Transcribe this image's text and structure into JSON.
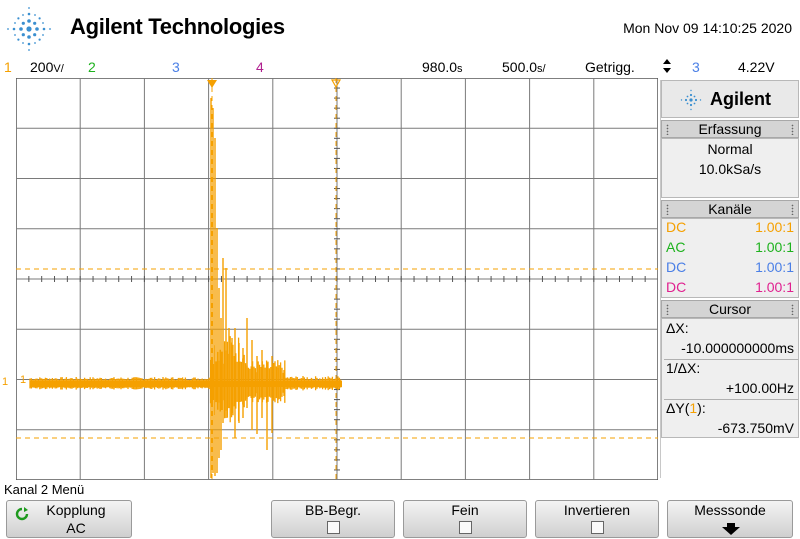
{
  "header": {
    "brand": "Agilent Technologies",
    "datetime": "Mon Nov 09 14:10:25 2020"
  },
  "status": {
    "ch1_num": "1",
    "ch1_scale": "200",
    "ch1_unit": "V/",
    "ch2_num": "2",
    "ch3_num": "3",
    "ch4_num": "4",
    "time_delay": "980.0",
    "time_delay_unit": "s",
    "time_scale": "500.0",
    "time_scale_unit": "s/",
    "trigger_mode": "Getrigg.",
    "trigger_source": "3",
    "trigger_level": "4.22V"
  },
  "scope": {
    "ch1_marker": "1",
    "ground_marker": "1"
  },
  "panel": {
    "logo_text": "Agilent",
    "acquisition": {
      "title": "Erfassung",
      "mode": "Normal",
      "rate": "10.0kSa/s"
    },
    "channels": {
      "title": "Kanäle",
      "rows": [
        {
          "coupling": "DC",
          "probe": "1.00:1",
          "color": "#f5a000"
        },
        {
          "coupling": "AC",
          "probe": "1.00:1",
          "color": "#1db21d"
        },
        {
          "coupling": "DC",
          "probe": "1.00:1",
          "color": "#4a7fe6"
        },
        {
          "coupling": "DC",
          "probe": "1.00:1",
          "color": "#e0208f"
        }
      ]
    },
    "cursor": {
      "title": "Cursor",
      "dx_label": "ΔX:",
      "dx_value": "-10.000000000ms",
      "inv_label": "1/ΔX:",
      "inv_value": "+100.00Hz",
      "dy_label": "ΔY(",
      "dy_channel": "1",
      "dy_label_end": "):",
      "dy_value": "-673.750mV"
    }
  },
  "menu": {
    "title": "Kanal 2 Menü",
    "kopplung_label": "Kopplung",
    "kopplung_value": "AC",
    "bw_label": "BB-Begr.",
    "fine_label": "Fein",
    "invert_label": "Invertieren",
    "probe_label": "Messsonde"
  },
  "colors": {
    "ch1": "#f5a000",
    "ch2": "#1db21d",
    "ch3": "#4a7fe6",
    "ch4": "#b0208f",
    "brand_blue": "#3a8fd0"
  }
}
